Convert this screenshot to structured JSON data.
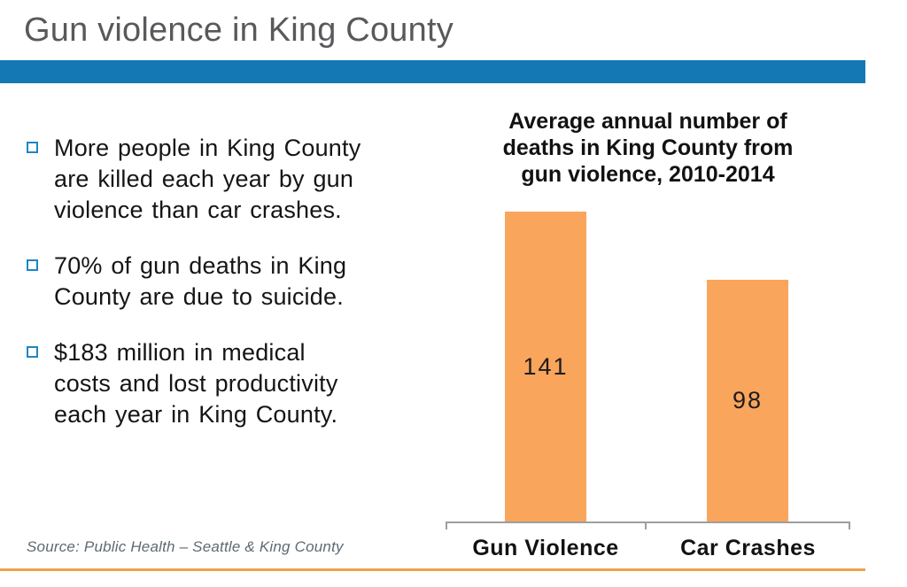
{
  "slide": {
    "title": "Gun violence in King County",
    "source": "Source: Public Health – Seattle & King County"
  },
  "bullets": [
    {
      "text": "More people in King County\nare killed each year by gun\nviolence than car crashes."
    },
    {
      "text": "70% of gun deaths in King\nCounty are due to suicide."
    },
    {
      "text": "$183 million in medical\ncosts and lost productivity\neach year in King County."
    }
  ],
  "chart_data": {
    "type": "bar",
    "title": "Average annual number of\ndeaths in King County from\ngun violence, 2010-2014",
    "categories": [
      "Gun Violence",
      "Car Crashes"
    ],
    "values": [
      141,
      98
    ],
    "data_labels": [
      "141",
      "98"
    ],
    "data_label_position": "center",
    "bar_color": "#f9a55c",
    "xlabel": "",
    "ylabel": "",
    "gridlines": false,
    "legend": "none"
  },
  "colors": {
    "accent_band_blue": "#1478b5",
    "bullet_marker_blue": "#1e86c5",
    "bar_orange": "#f9a55c",
    "bottom_rule_orange": "#f0a14c",
    "title_gray": "#58595b",
    "axis_gray": "#9e9e9e"
  }
}
